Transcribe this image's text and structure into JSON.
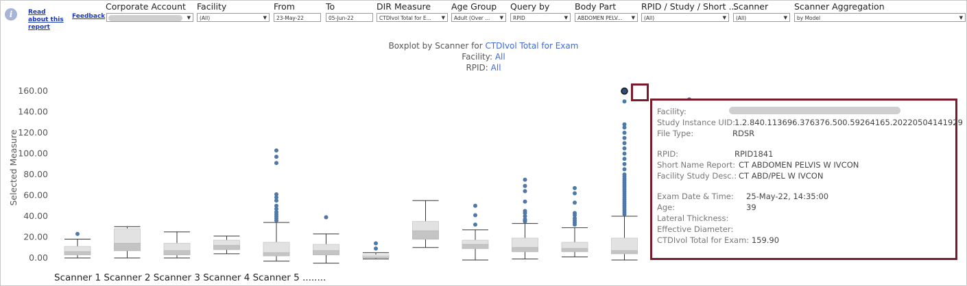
{
  "header": {
    "read_about": "Read about this report",
    "feedback": "Feedback"
  },
  "filters": {
    "corporate_account": {
      "label": "Corporate Account",
      "value": ""
    },
    "facility": {
      "label": "Facility",
      "value": "(All)"
    },
    "from": {
      "label": "From",
      "value": "23-May-22"
    },
    "to": {
      "label": "To",
      "value": "05-Jun-22"
    },
    "dir_measure": {
      "label": "DIR Measure",
      "value": "CTDIvol Total for E..."
    },
    "age_group": {
      "label": "Age Group",
      "value": "Adult (Over ..."
    },
    "query_by": {
      "label": "Query by",
      "value": "RPID"
    },
    "body_part": {
      "label": "Body Part",
      "value": "ABDOMEN PELV..."
    },
    "rpid_study": {
      "label": "RPID / Study / Short ...",
      "value": "(All)"
    },
    "scanner": {
      "label": "Scanner",
      "value": "(All)"
    },
    "scanner_aggregation": {
      "label": "Scanner Aggregation",
      "value": "by Model"
    }
  },
  "chart_title": {
    "line1_prefix": "Boxplot by Scanner for ",
    "line1_measure": "CTDIvol Total for Exam",
    "line2_prefix": "Facility: ",
    "line2_value": "All",
    "line3_prefix": "RPID: ",
    "line3_value": "All"
  },
  "chart_data": {
    "type": "boxplot",
    "ylabel": "Selected Measure",
    "ylim": [
      -5,
      165
    ],
    "yticks": [
      "0.00",
      "20.00",
      "40.00",
      "60.00",
      "80.00",
      "100.00",
      "120.00",
      "140.00",
      "160.00"
    ],
    "x_label_text": "Scanner 1  Scanner 2  Scanner 3  Scanner 4  Scanner 5 ........",
    "boxes": [
      {
        "min": 0,
        "q1": 3,
        "median": 6,
        "q3": 11,
        "max": 18,
        "outliers": [
          23
        ]
      },
      {
        "min": 0,
        "q1": 7,
        "median": 14,
        "q3": 28,
        "max": 30,
        "outliers": []
      },
      {
        "min": 0,
        "q1": 3,
        "median": 7,
        "q3": 14,
        "max": 25,
        "outliers": []
      },
      {
        "min": 4,
        "q1": 8,
        "median": 12,
        "q3": 17,
        "max": 21,
        "outliers": []
      },
      {
        "min": -3,
        "q1": 2,
        "median": 5,
        "q3": 15,
        "max": 34,
        "outliers": [
          36,
          38,
          40,
          42,
          44,
          47,
          50,
          55,
          58,
          61,
          91,
          97,
          103
        ]
      },
      {
        "min": -5,
        "q1": 3,
        "median": 7,
        "q3": 13,
        "max": 23,
        "outliers": [
          39
        ]
      },
      {
        "min": -1,
        "q1": 0,
        "median": 1,
        "q3": 3,
        "max": 5,
        "outliers": [
          9,
          14
        ]
      },
      {
        "min": 10,
        "q1": 18,
        "median": 26,
        "q3": 35,
        "max": 55,
        "outliers": []
      },
      {
        "min": -2,
        "q1": 9,
        "median": 13,
        "q3": 17,
        "max": 27,
        "outliers": [
          32,
          41,
          50
        ]
      },
      {
        "min": -1,
        "q1": 6,
        "median": 10,
        "q3": 19,
        "max": 33,
        "outliers": [
          35,
          36,
          37,
          40,
          43,
          45,
          54,
          64,
          69,
          75
        ]
      },
      {
        "min": 1,
        "q1": 6,
        "median": 9,
        "q3": 15,
        "max": 29,
        "outliers": [
          32,
          34,
          36,
          38,
          41,
          43,
          53,
          62,
          67
        ]
      },
      {
        "min": -2,
        "q1": 4,
        "median": 7,
        "q3": 19,
        "max": 40,
        "outliers": [
          42,
          44,
          46,
          48,
          50,
          52,
          54,
          56,
          58,
          60,
          62,
          64,
          66,
          68,
          70,
          72,
          74,
          76,
          78,
          80,
          85,
          90,
          95,
          100,
          105,
          110,
          115,
          120,
          125,
          128,
          150,
          159.9
        ]
      }
    ],
    "highlight_value": 159.9,
    "extra_point_value": 152
  },
  "tooltip": {
    "facility_label": "Facility:",
    "facility_value": "",
    "uid_label": "Study Instance UID:",
    "uid_value": "1.2.840.113696.376376.500.59264165.20220504141929",
    "filetype_label": "File Type:",
    "filetype_value": "RDSR",
    "rpid_label": "RPID:",
    "rpid_value": "RPID1841",
    "shortname_label": "Short Name Report:",
    "shortname_value": "CT ABDOMEN PELVIS W IVCON",
    "facdesc_label": "Facility Study Desc.:",
    "facdesc_value": "CT ABD/PEL W IVCON",
    "examdate_label": "Exam Date & Time:",
    "examdate_value": "25-May-22, 14:35:00",
    "age_label": "Age:",
    "age_value": "39",
    "lateral_label": "Lateral Thickness:",
    "effdiam_label": "Effective Diameter:",
    "ctdi_label": "CTDIvol Total for Exam:",
    "ctdi_value": "159.90"
  },
  "colors": {
    "accent": "#3f6ad6",
    "outlier": "#4e79a7",
    "highlight_border": "#7b1a2b"
  }
}
